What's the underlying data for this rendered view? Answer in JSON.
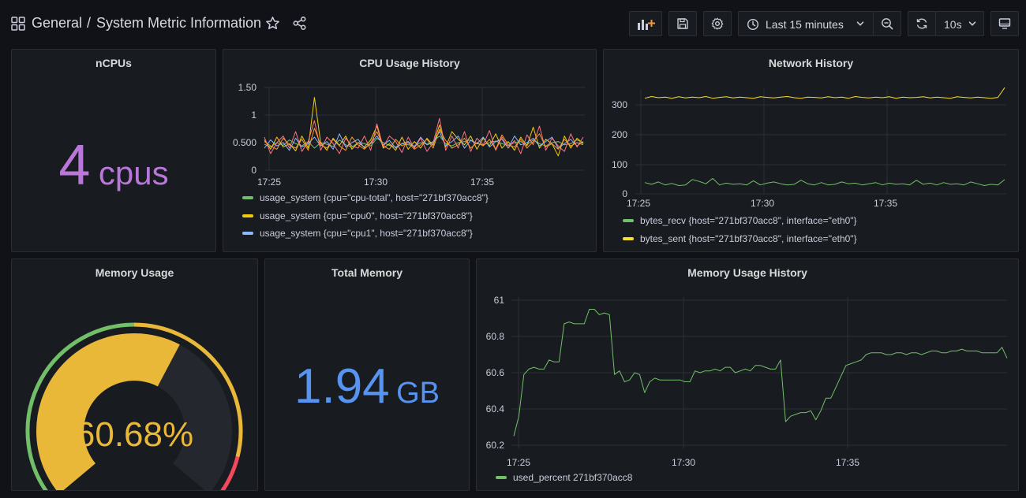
{
  "header": {
    "breadcrumb_folder": "General",
    "breadcrumb_sep": "/",
    "dashboard_title": "System Metric Information",
    "time_range": "Last 15 minutes",
    "refresh_interval": "10s"
  },
  "panels": {
    "ncpus": {
      "title": "nCPUs",
      "value": "4",
      "unit": "cpus",
      "color": "#b877d9"
    },
    "cpu_history": {
      "title": "CPU Usage History"
    },
    "network_history": {
      "title": "Network History"
    },
    "memory_usage": {
      "title": "Memory Usage",
      "value": "60.68%",
      "color": "#eab839"
    },
    "total_memory": {
      "title": "Total Memory",
      "value": "1.94",
      "unit": "GB",
      "color": "#5794f2"
    },
    "memory_history": {
      "title": "Memory Usage History"
    }
  },
  "chart_data": [
    {
      "id": "cpu",
      "type": "line",
      "title": "CPU Usage History",
      "x_ticks": [
        "17:25",
        "17:30",
        "17:35"
      ],
      "y_ticks": [
        "1.50",
        "1",
        "0.500",
        "0"
      ],
      "ylim": [
        0,
        1.5
      ],
      "grid": true,
      "legend_position": "bottom",
      "series": [
        {
          "name": "usage_system {cpu=\"cpu-total\", host=\"271bf370acc8\"}",
          "color": "#73bf69",
          "values": [
            0.47,
            0.42,
            0.5,
            0.45,
            0.55,
            0.48,
            0.44,
            0.52,
            0.4,
            0.5,
            0.47,
            0.43,
            0.55,
            0.46,
            0.42,
            0.5,
            0.48,
            0.44,
            0.58,
            0.5,
            0.45,
            0.42,
            0.48,
            0.46,
            0.44,
            0.5,
            0.47,
            0.52,
            0.62,
            0.48,
            0.44,
            0.5,
            0.52,
            0.55,
            0.48,
            0.46,
            0.5,
            0.53,
            0.48,
            0.45,
            0.5,
            0.52,
            0.46,
            0.55,
            0.48,
            0.44,
            0.5,
            0.52,
            0.46,
            0.48,
            0.55,
            0.5
          ]
        },
        {
          "name": "usage_system {cpu=\"cpu0\", host=\"271bf370acc8\"}",
          "color": "#f2cc0c",
          "values": [
            0.55,
            0.38,
            0.6,
            0.42,
            0.48,
            0.35,
            0.62,
            0.4,
            1.32,
            0.5,
            0.36,
            0.58,
            0.45,
            0.62,
            0.38,
            0.5,
            0.42,
            0.55,
            0.8,
            0.4,
            0.48,
            0.36,
            0.6,
            0.38,
            0.52,
            0.4,
            0.58,
            0.45,
            0.82,
            0.42,
            0.7,
            0.56,
            0.46,
            0.62,
            0.38,
            0.58,
            0.44,
            0.66,
            0.4,
            0.52,
            0.36,
            0.6,
            0.44,
            0.78,
            0.4,
            0.56,
            0.48,
            0.26,
            0.62,
            0.4,
            0.58,
            0.48
          ]
        },
        {
          "name": "usage_system {cpu=\"cpu1\", host=\"271bf370acc8\"}",
          "color": "#8ab8ff",
          "values": [
            0.4,
            0.55,
            0.44,
            0.5,
            0.36,
            0.58,
            0.42,
            0.48,
            0.6,
            0.44,
            0.52,
            0.38,
            0.66,
            0.42,
            0.5,
            0.56,
            0.4,
            0.48,
            0.62,
            0.46,
            0.54,
            0.4,
            0.48,
            0.52,
            0.42,
            0.6,
            0.46,
            0.5,
            0.7,
            0.44,
            0.52,
            0.62,
            0.4,
            0.54,
            0.48,
            0.6,
            0.42,
            0.52,
            0.56,
            0.4,
            0.62,
            0.46,
            0.5,
            0.58,
            0.44,
            0.52,
            0.6,
            0.4,
            0.48,
            0.56,
            0.44,
            0.52
          ]
        },
        {
          "name": "",
          "color": "#ff7383",
          "values": [
            0.6,
            0.3,
            0.5,
            0.62,
            0.4,
            0.7,
            0.34,
            0.52,
            0.9,
            0.36,
            0.6,
            0.48,
            0.3,
            0.58,
            0.44,
            0.4,
            0.62,
            0.36,
            0.84,
            0.42,
            0.62,
            0.52,
            0.32,
            0.6,
            0.4,
            0.58,
            0.34,
            0.5,
            0.94,
            0.36,
            0.62,
            0.4,
            0.7,
            0.34,
            0.58,
            0.46,
            0.72,
            0.36,
            0.6,
            0.4,
            0.54,
            0.3,
            0.64,
            0.46,
            0.8,
            0.36,
            0.58,
            0.44,
            0.34,
            0.66,
            0.42,
            0.6
          ]
        },
        {
          "name": "",
          "color": "#ff9830",
          "values": [
            0.52,
            0.44,
            0.38,
            0.58,
            0.46,
            0.4,
            0.56,
            0.36,
            0.76,
            0.46,
            0.4,
            0.56,
            0.44,
            0.36,
            0.6,
            0.46,
            0.38,
            0.5,
            0.7,
            0.44,
            0.38,
            0.56,
            0.44,
            0.5,
            0.38,
            0.46,
            0.56,
            0.4,
            0.74,
            0.54,
            0.4,
            0.46,
            0.58,
            0.4,
            0.5,
            0.44,
            0.56,
            0.38,
            0.64,
            0.46,
            0.42,
            0.56,
            0.4,
            0.52,
            0.66,
            0.42,
            0.48,
            0.38,
            0.56,
            0.44,
            0.5,
            0.46
          ]
        }
      ]
    },
    {
      "id": "net",
      "type": "line",
      "title": "Network History",
      "x_ticks": [
        "17:25",
        "17:30",
        "17:35"
      ],
      "y_ticks": [
        "300",
        "200",
        "100",
        "0"
      ],
      "ylim": [
        0,
        300
      ],
      "grid": true,
      "legend_position": "bottom",
      "series": [
        {
          "name": "bytes_recv {host=\"271bf370acc8\", interface=\"eth0\"}",
          "color": "#73bf69",
          "values": [
            38,
            32,
            40,
            30,
            35,
            28,
            30,
            48,
            42,
            34,
            52,
            30,
            36,
            32,
            34,
            30,
            44,
            30,
            36,
            40,
            34,
            30,
            32,
            46,
            34,
            30,
            38,
            30,
            32,
            40,
            34,
            36,
            30,
            34,
            38,
            30,
            36,
            32,
            34,
            30,
            46,
            32,
            36,
            30,
            38,
            32,
            34,
            30,
            40,
            34,
            28,
            32,
            30,
            48
          ]
        },
        {
          "name": "bytes_sent {host=\"271bf370acc8\", interface=\"eth0\"}",
          "color": "#fade2a",
          "values": [
            322,
            328,
            324,
            326,
            322,
            327,
            323,
            326,
            324,
            328,
            322,
            325,
            327,
            323,
            326,
            324,
            322,
            327,
            325,
            323,
            326,
            328,
            324,
            322,
            326,
            325,
            323,
            327,
            324,
            326,
            322,
            328,
            325,
            323,
            326,
            324,
            327,
            322,
            326,
            324,
            325,
            327,
            323,
            326,
            324,
            322,
            327,
            325,
            323,
            326,
            324,
            322,
            325,
            358
          ]
        }
      ]
    },
    {
      "id": "mem",
      "type": "line",
      "title": "Memory Usage History",
      "x_ticks": [
        "17:25",
        "17:30",
        "17:35"
      ],
      "y_ticks": [
        "61",
        "60.8",
        "60.6",
        "60.4",
        "60.2"
      ],
      "ylim": [
        60.2,
        61
      ],
      "grid": true,
      "legend_position": "bottom",
      "series": [
        {
          "name": "used_percent 271bf370acc8",
          "color": "#73bf69",
          "values": [
            60.25,
            60.36,
            60.59,
            60.62,
            60.63,
            60.62,
            60.62,
            60.67,
            60.66,
            60.66,
            60.87,
            60.88,
            60.87,
            60.87,
            60.87,
            60.95,
            60.95,
            60.92,
            60.93,
            60.92,
            60.59,
            60.61,
            60.55,
            60.56,
            60.6,
            60.59,
            60.49,
            60.55,
            60.57,
            60.56,
            60.56,
            60.56,
            60.56,
            60.56,
            60.55,
            60.55,
            60.61,
            60.6,
            60.61,
            60.61,
            60.62,
            60.61,
            60.63,
            60.63,
            60.6,
            60.61,
            60.62,
            60.61,
            60.64,
            60.64,
            60.63,
            60.62,
            60.62,
            60.67,
            60.33,
            60.36,
            60.37,
            60.38,
            60.38,
            60.39,
            60.34,
            60.39,
            60.46,
            60.46,
            60.52,
            60.58,
            60.64,
            60.65,
            60.66,
            60.67,
            60.7,
            60.71,
            60.71,
            60.71,
            60.7,
            60.7,
            60.71,
            60.71,
            60.7,
            60.71,
            60.71,
            60.7,
            60.71,
            60.72,
            60.72,
            60.71,
            60.71,
            60.72,
            60.72,
            60.73,
            60.72,
            60.72,
            60.72,
            60.71,
            60.71,
            60.71,
            60.71,
            60.74,
            60.68
          ]
        }
      ]
    }
  ],
  "gauge": {
    "value": 60.68,
    "min": 0,
    "max": 100,
    "thresholds": [
      "#73bf69",
      "#eab839",
      "#f2495c"
    ]
  }
}
